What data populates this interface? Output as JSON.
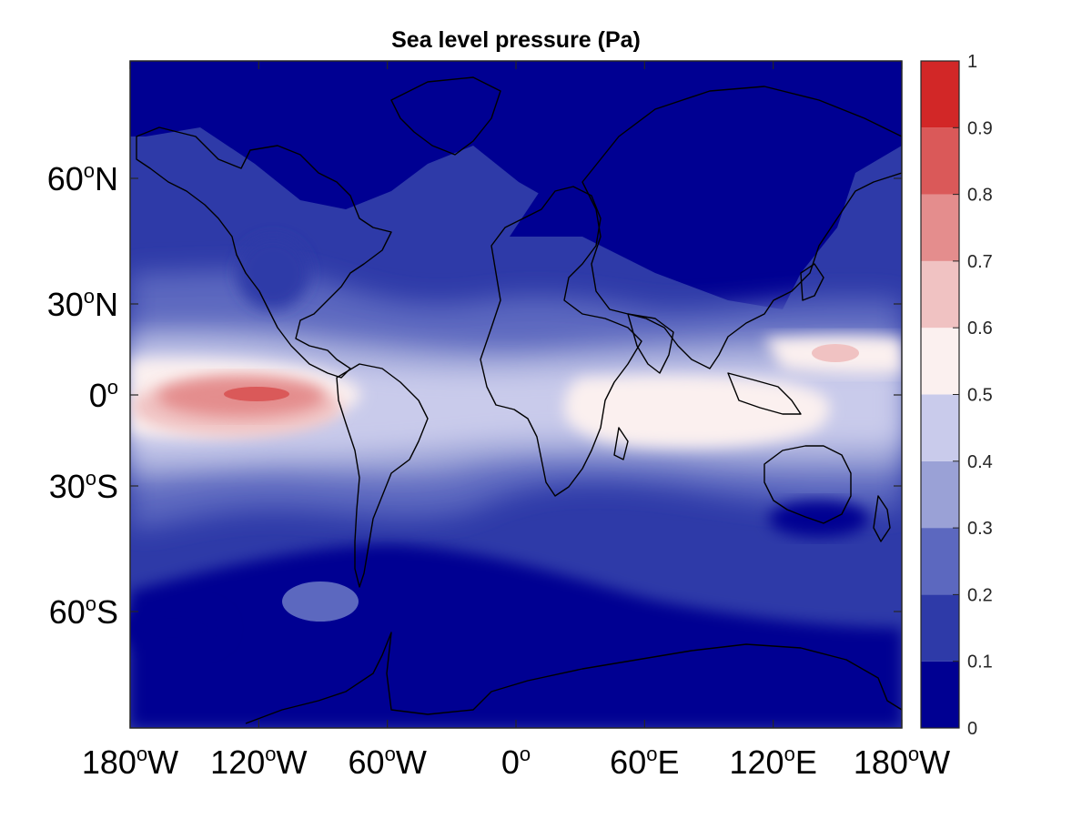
{
  "chart_data": {
    "type": "heatmap",
    "title": "Sea level pressure (Pa)",
    "xlabel": "",
    "ylabel": "",
    "x_range_deg": [
      -180,
      180
    ],
    "y_range_deg": [
      -90,
      90
    ],
    "x_ticks": [
      {
        "value": -180,
        "label": "180",
        "suffix": "W"
      },
      {
        "value": -120,
        "label": "120",
        "suffix": "W"
      },
      {
        "value": -60,
        "label": "60",
        "suffix": "W"
      },
      {
        "value": 0,
        "label": "0",
        "suffix": ""
      },
      {
        "value": 60,
        "label": "60",
        "suffix": "E"
      },
      {
        "value": 120,
        "label": "120",
        "suffix": "E"
      },
      {
        "value": 180,
        "label": "180",
        "suffix": "W"
      }
    ],
    "y_ticks": [
      {
        "value": 60,
        "label": "60",
        "suffix": "N"
      },
      {
        "value": 30,
        "label": "30",
        "suffix": "N"
      },
      {
        "value": 0,
        "label": "0",
        "suffix": ""
      },
      {
        "value": -30,
        "label": "30",
        "suffix": "S"
      },
      {
        "value": -60,
        "label": "60",
        "suffix": "S"
      }
    ],
    "degree_symbol": "o",
    "colorbar": {
      "range": [
        0,
        1
      ],
      "ticks": [
        "0",
        "0.1",
        "0.2",
        "0.3",
        "0.4",
        "0.5",
        "0.6",
        "0.7",
        "0.8",
        "0.9",
        "1"
      ],
      "levels": [
        0,
        0.1,
        0.2,
        0.3,
        0.4,
        0.5,
        0.6,
        0.7,
        0.8,
        0.9,
        1.0
      ],
      "colors": [
        "#000092",
        "#2e3aa8",
        "#5c68bf",
        "#9aa1d6",
        "#c9cbeb",
        "#fbf0ef",
        "#f0c2c2",
        "#e48d8d",
        "#da5959",
        "#d22727"
      ]
    },
    "field_features": [
      {
        "name": "equatorial-pacific-maximum",
        "lon": -120,
        "lat": 0,
        "value": 0.85
      },
      {
        "name": "east-pacific-band",
        "lon": -150,
        "lat": 0,
        "value": 0.72
      },
      {
        "name": "indian-ocean-band",
        "lon": 75,
        "lat": -3,
        "value": 0.55
      },
      {
        "name": "west-pacific-spot",
        "lon": 145,
        "lat": 12,
        "value": 0.65
      },
      {
        "name": "north-polar-low",
        "lon": 0,
        "lat": 80,
        "value": 0.05
      },
      {
        "name": "southern-ocean-band",
        "lon": 0,
        "lat": -55,
        "value": 0.12
      }
    ]
  }
}
